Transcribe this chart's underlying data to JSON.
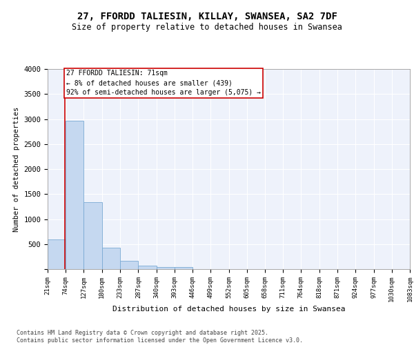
{
  "title_line1": "27, FFORDD TALIESIN, KILLAY, SWANSEA, SA2 7DF",
  "title_line2": "Size of property relative to detached houses in Swansea",
  "xlabel": "Distribution of detached houses by size in Swansea",
  "ylabel": "Number of detached properties",
  "bar_color": "#c5d8f0",
  "bar_edge_color": "#7aaad4",
  "annotation_box_color": "#cc0000",
  "annotation_text": "27 FFORDD TALIESIN: 71sqm\n← 8% of detached houses are smaller (439)\n92% of semi-detached houses are larger (5,075) →",
  "property_line_x": 71,
  "bin_edges": [
    21,
    74,
    127,
    180,
    233,
    287,
    340,
    393,
    446,
    499,
    552,
    605,
    658,
    711,
    764,
    818,
    871,
    924,
    977,
    1030,
    1083
  ],
  "bar_heights": [
    590,
    2970,
    1335,
    430,
    170,
    70,
    45,
    35,
    0,
    0,
    0,
    0,
    0,
    0,
    0,
    0,
    0,
    0,
    0,
    0
  ],
  "ylim": [
    0,
    4000
  ],
  "yticks": [
    0,
    500,
    1000,
    1500,
    2000,
    2500,
    3000,
    3500,
    4000
  ],
  "background_color": "#eef2fb",
  "grid_color": "#ffffff",
  "footer_text": "Contains HM Land Registry data © Crown copyright and database right 2025.\nContains public sector information licensed under the Open Government Licence v3.0.",
  "tick_labels": [
    "21sqm",
    "74sqm",
    "127sqm",
    "180sqm",
    "233sqm",
    "287sqm",
    "340sqm",
    "393sqm",
    "446sqm",
    "499sqm",
    "552sqm",
    "605sqm",
    "658sqm",
    "711sqm",
    "764sqm",
    "818sqm",
    "871sqm",
    "924sqm",
    "977sqm",
    "1030sqm",
    "1083sqm"
  ]
}
